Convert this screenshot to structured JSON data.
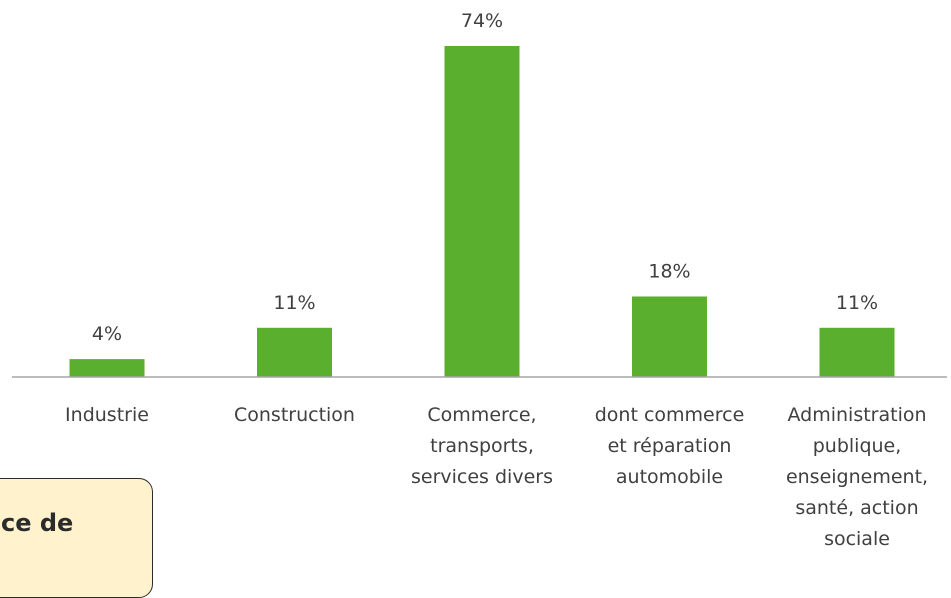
{
  "chart_data": {
    "type": "bar",
    "categories": [
      [
        "Industrie"
      ],
      [
        "Construction"
      ],
      [
        "Commerce,",
        "transports,",
        "services divers"
      ],
      [
        "dont commerce",
        "et réparation",
        "automobile"
      ],
      [
        "Administration",
        "publique,",
        "enseignement,",
        "santé, action",
        "sociale"
      ]
    ],
    "values": [
      4,
      11,
      74,
      18,
      11
    ],
    "data_labels": [
      "4%",
      "11%",
      "74%",
      "18%",
      "11%"
    ],
    "bar_color": "#5aaf2f",
    "axis_color": "#a6a6a6",
    "grid": false,
    "legend": "none",
    "title": "",
    "xlabel": "",
    "ylabel": ""
  },
  "callout": {
    "text": "ce de",
    "background": "#fff2cc"
  }
}
